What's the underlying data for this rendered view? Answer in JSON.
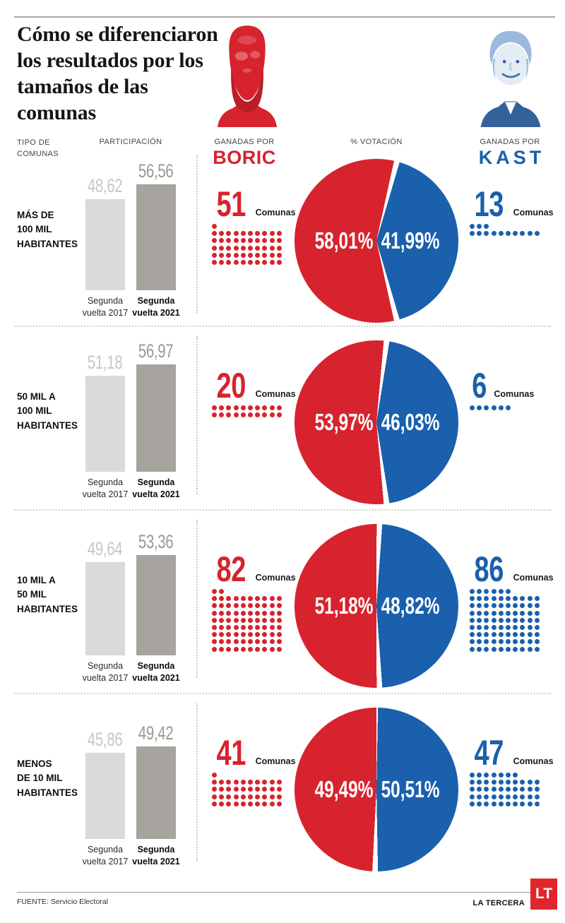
{
  "colors": {
    "boric_red": "#d7232e",
    "kast_blue": "#1a60ac",
    "bar_2017": "#dbdad8",
    "bar_2021": "#a7a39e",
    "bar_label_2017": "#c7c6c4",
    "bar_label_2021": "#9b9793",
    "logo_red": "#e0262c"
  },
  "header": {
    "title": "Cómo se diferenciaron los resultados por los tamaños de las comunas",
    "col_tipo": "TIPO DE\nCOMUNAS",
    "col_participacion": "PARTICIPACIÓN",
    "col_ganadas_por_left": "GANADAS POR",
    "boric": "BORIC",
    "col_votacion": "% VOTACIÓN",
    "col_ganadas_por_right": "GANADAS POR",
    "kast": "KAST"
  },
  "labels": {
    "comunas": "Comunas",
    "vuelta2017": "Segunda\nvuelta 2017",
    "vuelta2021": "Segunda\nvuelta 2021"
  },
  "rows": [
    {
      "category": "MÁS DE\n100 MIL\nHABITANTES",
      "p2017": "48,62",
      "p2021": "56,56",
      "boric_n": "51",
      "kast_n": "13",
      "boric_pct": "58,01%",
      "kast_pct": "41,99%"
    },
    {
      "category": "50 MIL A\n100 MIL\nHABITANTES",
      "p2017": "51,18",
      "p2021": "56,97",
      "boric_n": "20",
      "kast_n": "6",
      "boric_pct": "53,97%",
      "kast_pct": "46,03%"
    },
    {
      "category": "10 MIL A\n50 MIL\nHABITANTES",
      "p2017": "49,64",
      "p2021": "53,36",
      "boric_n": "82",
      "kast_n": "86",
      "boric_pct": "51,18%",
      "kast_pct": "48,82%"
    },
    {
      "category": "MENOS\nDE 10 MIL\nHABITANTES",
      "p2017": "45,86",
      "p2021": "49,42",
      "boric_n": "41",
      "kast_n": "47",
      "boric_pct": "49,49%",
      "kast_pct": "50,51%"
    }
  ],
  "footer": {
    "fuente": "FUENTE: Servicio Electoral",
    "brand": "LA TERCERA",
    "logo": "LT"
  },
  "chart_data": [
    {
      "type": "bar",
      "title": "PARTICIPACIÓN",
      "categories": [
        "Más de 100 mil habitantes",
        "50 mil a 100 mil habitantes",
        "10 mil a 50 mil habitantes",
        "Menos de 10 mil habitantes"
      ],
      "series": [
        {
          "name": "Segunda vuelta 2017",
          "values": [
            48.62,
            51.18,
            49.64,
            45.86
          ]
        },
        {
          "name": "Segunda vuelta 2021",
          "values": [
            56.56,
            56.97,
            53.36,
            49.42
          ]
        }
      ],
      "ylabel": "% participación",
      "ylim": [
        0,
        60
      ],
      "grid": false,
      "legend_position": "below-bars"
    },
    {
      "type": "pie",
      "title": "% VOTACIÓN",
      "categories": [
        "Más de 100 mil habitantes",
        "50 mil a 100 mil habitantes",
        "10 mil a 50 mil habitantes",
        "Menos de 10 mil habitantes"
      ],
      "series": [
        {
          "name": "Boric",
          "values": [
            58.01,
            53.97,
            51.18,
            49.49
          ]
        },
        {
          "name": "Kast",
          "values": [
            41.99,
            46.03,
            48.82,
            50.51
          ]
        }
      ],
      "colors": [
        "#d7232e",
        "#1a60ac"
      ],
      "note": "one pie per category, Boric slice left / Kast slice right"
    },
    {
      "type": "bar",
      "title": "Comunas ganadas (pictograma de puntos)",
      "categories": [
        "Más de 100 mil habitantes",
        "50 mil a 100 mil habitantes",
        "10 mil a 50 mil habitantes",
        "Menos de 10 mil habitantes"
      ],
      "series": [
        {
          "name": "Ganadas por Boric",
          "values": [
            51,
            20,
            82,
            41
          ]
        },
        {
          "name": "Ganadas por Kast",
          "values": [
            13,
            6,
            86,
            47
          ]
        }
      ]
    }
  ]
}
